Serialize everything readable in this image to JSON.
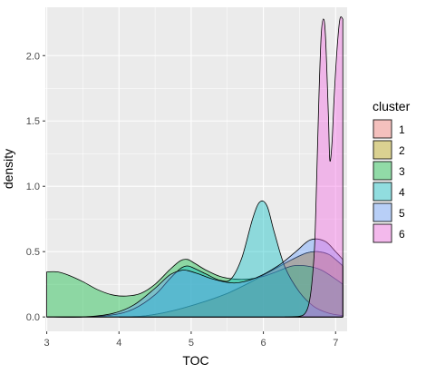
{
  "chart_data": {
    "type": "area",
    "xlabel": "TOC",
    "ylabel": "density",
    "xlim": [
      2.98,
      7.16
    ],
    "ylim": [
      -0.11,
      2.37
    ],
    "x_ticks": [
      "3",
      "4",
      "5",
      "6",
      "7"
    ],
    "y_ticks": [
      "0.0",
      "0.5",
      "1.0",
      "1.5",
      "2.0"
    ],
    "x_tick_values": [
      3,
      4,
      5,
      6,
      7
    ],
    "y_tick_values": [
      0.0,
      0.5,
      1.0,
      1.5,
      2.0
    ],
    "grid": true,
    "legend_title": "cluster",
    "legend_position": "right",
    "fill_opacity": 0.4,
    "series": [
      {
        "name": "1",
        "color": "#F8766D",
        "points": [
          [
            4.0,
            0.0
          ],
          [
            4.3,
            0.005
          ],
          [
            4.6,
            0.03
          ],
          [
            4.9,
            0.07
          ],
          [
            5.2,
            0.12
          ],
          [
            5.5,
            0.18
          ],
          [
            5.8,
            0.26
          ],
          [
            6.1,
            0.35
          ],
          [
            6.4,
            0.44
          ],
          [
            6.6,
            0.49
          ],
          [
            6.75,
            0.5
          ],
          [
            6.9,
            0.48
          ],
          [
            7.0,
            0.44
          ],
          [
            7.1,
            0.39
          ]
        ]
      },
      {
        "name": "2",
        "color": "#B79F00",
        "points": [
          [
            4.0,
            0.0
          ],
          [
            4.3,
            0.005
          ],
          [
            4.6,
            0.03
          ],
          [
            4.9,
            0.07
          ],
          [
            5.2,
            0.12
          ],
          [
            5.5,
            0.18
          ],
          [
            5.8,
            0.26
          ],
          [
            6.1,
            0.35
          ],
          [
            6.4,
            0.44
          ],
          [
            6.6,
            0.49
          ],
          [
            6.75,
            0.5
          ],
          [
            6.9,
            0.48
          ],
          [
            7.0,
            0.44
          ],
          [
            7.1,
            0.39
          ]
        ]
      },
      {
        "name": "3",
        "color": "#00BA38",
        "points": [
          [
            3.0,
            0.345
          ],
          [
            3.15,
            0.345
          ],
          [
            3.3,
            0.32
          ],
          [
            3.5,
            0.27
          ],
          [
            3.7,
            0.21
          ],
          [
            3.9,
            0.17
          ],
          [
            4.1,
            0.16
          ],
          [
            4.3,
            0.18
          ],
          [
            4.5,
            0.25
          ],
          [
            4.7,
            0.36
          ],
          [
            4.85,
            0.43
          ],
          [
            4.95,
            0.44
          ],
          [
            5.05,
            0.41
          ],
          [
            5.2,
            0.36
          ],
          [
            5.4,
            0.31
          ],
          [
            5.6,
            0.29
          ],
          [
            5.8,
            0.29
          ],
          [
            6.0,
            0.31
          ],
          [
            6.2,
            0.35
          ],
          [
            6.4,
            0.39
          ],
          [
            6.6,
            0.39
          ],
          [
            6.8,
            0.36
          ],
          [
            7.0,
            0.29
          ],
          [
            7.1,
            0.25
          ]
        ]
      },
      {
        "name": "4",
        "color": "#00BFC4",
        "points": [
          [
            3.0,
            0.0
          ],
          [
            3.5,
            0.0
          ],
          [
            3.9,
            0.015
          ],
          [
            4.2,
            0.06
          ],
          [
            4.5,
            0.17
          ],
          [
            4.7,
            0.29
          ],
          [
            4.85,
            0.37
          ],
          [
            4.95,
            0.39
          ],
          [
            5.05,
            0.37
          ],
          [
            5.2,
            0.33
          ],
          [
            5.4,
            0.28
          ],
          [
            5.55,
            0.29
          ],
          [
            5.7,
            0.45
          ],
          [
            5.85,
            0.75
          ],
          [
            5.95,
            0.88
          ],
          [
            6.05,
            0.85
          ],
          [
            6.15,
            0.65
          ],
          [
            6.3,
            0.38
          ],
          [
            6.5,
            0.19
          ],
          [
            6.7,
            0.08
          ],
          [
            6.9,
            0.03
          ],
          [
            7.1,
            0.01
          ]
        ]
      },
      {
        "name": "5",
        "color": "#619CFF",
        "points": [
          [
            3.0,
            0.0
          ],
          [
            3.5,
            0.0
          ],
          [
            3.9,
            0.025
          ],
          [
            4.2,
            0.09
          ],
          [
            4.5,
            0.22
          ],
          [
            4.7,
            0.32
          ],
          [
            4.85,
            0.355
          ],
          [
            4.95,
            0.355
          ],
          [
            5.1,
            0.33
          ],
          [
            5.3,
            0.29
          ],
          [
            5.6,
            0.26
          ],
          [
            5.9,
            0.3
          ],
          [
            6.2,
            0.39
          ],
          [
            6.45,
            0.5
          ],
          [
            6.65,
            0.59
          ],
          [
            6.85,
            0.58
          ],
          [
            7.0,
            0.5
          ],
          [
            7.1,
            0.44
          ]
        ]
      },
      {
        "name": "6",
        "color": "#F564E3",
        "points": [
          [
            6.3,
            0.0
          ],
          [
            6.5,
            0.005
          ],
          [
            6.58,
            0.03
          ],
          [
            6.63,
            0.1
          ],
          [
            6.67,
            0.25
          ],
          [
            6.71,
            0.55
          ],
          [
            6.74,
            1.1
          ],
          [
            6.77,
            1.7
          ],
          [
            6.8,
            2.15
          ],
          [
            6.83,
            2.28
          ],
          [
            6.86,
            2.15
          ],
          [
            6.9,
            1.55
          ],
          [
            6.92,
            1.2
          ],
          [
            6.95,
            1.33
          ],
          [
            6.98,
            1.68
          ],
          [
            7.02,
            2.05
          ],
          [
            7.06,
            2.28
          ],
          [
            7.1,
            2.28
          ]
        ]
      }
    ]
  }
}
